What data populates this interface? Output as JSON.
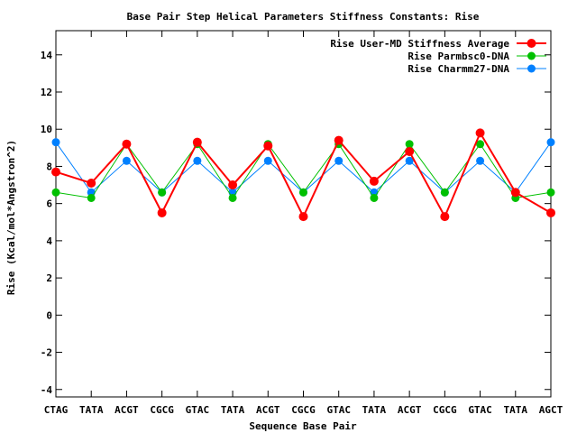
{
  "chart_data": {
    "type": "line",
    "title": "Base Pair Step Helical Parameters Stiffness Constants: Rise",
    "xlabel": "Sequence Base Pair",
    "ylabel": "Rise (Kcal/mol*Angstron^2)",
    "categories": [
      "CTAG",
      "TATA",
      "ACGT",
      "CGCG",
      "GTAC",
      "TATA",
      "ACGT",
      "CGCG",
      "GTAC",
      "TATA",
      "ACGT",
      "CGCG",
      "GTAC",
      "TATA",
      "AGCT"
    ],
    "ylim": [
      -4.4,
      15.3
    ],
    "yticks": [
      -4,
      -2,
      0,
      2,
      4,
      6,
      8,
      10,
      12,
      14
    ],
    "legend_position": "top-right",
    "grid": false,
    "series": [
      {
        "name": "Rise User-MD Stiffness Average",
        "color": "#ff0000",
        "values": [
          7.7,
          7.1,
          9.2,
          5.5,
          9.3,
          7.0,
          9.1,
          5.3,
          9.4,
          7.2,
          8.8,
          5.3,
          9.8,
          6.6,
          5.5
        ]
      },
      {
        "name": "Rise Parmbsc0-DNA",
        "color": "#00c000",
        "values": [
          6.6,
          6.3,
          9.2,
          6.6,
          9.2,
          6.3,
          9.2,
          6.6,
          9.2,
          6.3,
          9.2,
          6.6,
          9.2,
          6.3,
          6.6
        ]
      },
      {
        "name": "Rise Charmm27-DNA",
        "color": "#0080ff",
        "values": [
          9.3,
          6.6,
          8.3,
          6.6,
          8.3,
          6.6,
          8.3,
          6.6,
          8.3,
          6.6,
          8.3,
          6.6,
          8.3,
          6.6,
          9.3
        ]
      }
    ]
  }
}
